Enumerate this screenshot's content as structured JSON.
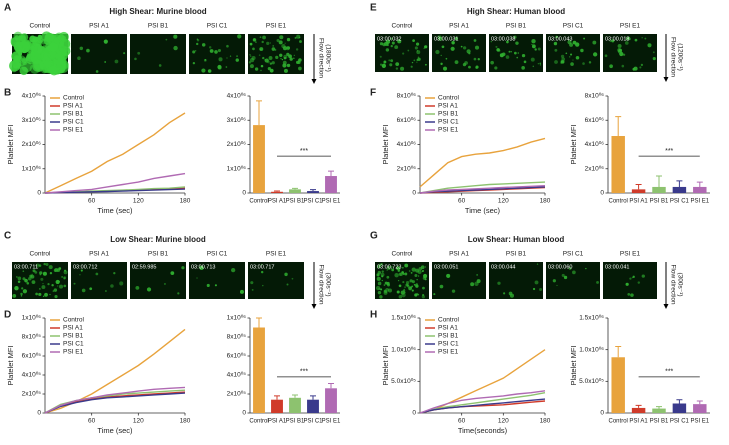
{
  "panels": [
    {
      "letter": "A",
      "title": "High Shear: Murine blood",
      "labels": [
        "Control",
        "PSI A1",
        "PSI B1",
        "PSI C1",
        "PSI E1"
      ],
      "flow": "Flow direction",
      "rate": "(1800s⁻¹)"
    },
    {
      "letter": "C",
      "title": "Low Shear: Murine blood",
      "labels": [
        "Control",
        "PSI A1",
        "PSI B1",
        "PSI C1",
        "PSI E1"
      ],
      "timestamps": [
        "03:00.711",
        "03:00.712",
        "02:59.985",
        "03:00.713",
        "03:00.717"
      ],
      "flow": "Flow direction",
      "rate": "(300s⁻¹)"
    },
    {
      "letter": "E",
      "title": "High Shear: Human blood",
      "labels": [
        "Control",
        "PSI A1",
        "PSI B1",
        "PSI C1",
        "PSI E1"
      ],
      "timestamps": [
        "03:00.032",
        "03:00.031",
        "03:00.038",
        "03:00.043",
        "03:00.018"
      ],
      "flow": "Flow direction",
      "rate": "(1200s⁻¹)"
    },
    {
      "letter": "G",
      "title": "Low Shear: Human blood",
      "labels": [
        "Control",
        "PSI A1",
        "PSI B1",
        "PSI C1",
        "PSI E1"
      ],
      "timestamps": [
        "03:00.723",
        "03:00.051",
        "03:00.044",
        "03:00.060",
        "03:00.041"
      ],
      "flow": "Flow direction",
      "rate": "(300s⁻¹)"
    }
  ],
  "plot_letters": [
    "B",
    "D",
    "F",
    "H"
  ],
  "chart_data": [
    {
      "type": "line",
      "xlabel": "Time (sec)",
      "ylabel": "Platelet MFI",
      "x": [
        0,
        20,
        40,
        60,
        80,
        100,
        120,
        140,
        160,
        180
      ],
      "xlim": [
        0,
        180
      ],
      "xticks": [
        60,
        120,
        180
      ],
      "ylim": [
        0,
        4000000
      ],
      "yticks": [
        0,
        {
          "value": 1000000,
          "label": "1x10⁰⁶"
        },
        {
          "value": 2000000,
          "label": "2x10⁰⁶"
        },
        {
          "value": 3000000,
          "label": "3x10⁰⁶"
        },
        {
          "value": 4000000,
          "label": "4x10⁰⁶"
        }
      ],
      "series": [
        {
          "name": "Control",
          "color": "#e8a33d",
          "values": [
            0,
            300000,
            600000,
            900000,
            1300000,
            1600000,
            2000000,
            2400000,
            2900000,
            3300000
          ]
        },
        {
          "name": "PSI A1",
          "color": "#d03b2a",
          "values": [
            0,
            20000,
            40000,
            60000,
            80000,
            100000,
            120000,
            140000,
            160000,
            200000
          ]
        },
        {
          "name": "PSI B1",
          "color": "#8dc26f",
          "values": [
            0,
            30000,
            50000,
            80000,
            100000,
            120000,
            150000,
            180000,
            200000,
            250000
          ]
        },
        {
          "name": "PSI C1",
          "color": "#3a3a8c",
          "values": [
            0,
            20000,
            30000,
            50000,
            60000,
            80000,
            100000,
            120000,
            140000,
            160000
          ]
        },
        {
          "name": "PSI E1",
          "color": "#b06ab3",
          "values": [
            0,
            50000,
            100000,
            150000,
            250000,
            350000,
            450000,
            600000,
            700000,
            800000
          ]
        }
      ]
    },
    {
      "type": "bar",
      "categories": [
        "Control",
        "PSI A1",
        "PSI B1",
        "PSI C1",
        "PSI E1"
      ],
      "values": [
        2800000,
        50000,
        150000,
        80000,
        700000
      ],
      "errors": [
        1000000,
        30000,
        40000,
        60000,
        200000
      ],
      "colors": [
        "#e8a33d",
        "#d03b2a",
        "#8dc26f",
        "#3a3a8c",
        "#b06ab3"
      ],
      "ylim": [
        0,
        4000000
      ],
      "yticks": [
        0,
        {
          "value": 1000000,
          "label": "1x10⁰⁶"
        },
        {
          "value": 2000000,
          "label": "2x10⁰⁶"
        },
        {
          "value": 3000000,
          "label": "3x10⁰⁶"
        },
        {
          "value": 4000000,
          "label": "4x10⁰⁶"
        }
      ],
      "annotation": "***"
    },
    {
      "type": "line",
      "xlabel": "Time (sec)",
      "ylabel": "Platelet MFI",
      "x": [
        0,
        20,
        40,
        60,
        80,
        100,
        120,
        140,
        160,
        180
      ],
      "xlim": [
        0,
        180
      ],
      "xticks": [
        60,
        120,
        180
      ],
      "ylim": [
        0,
        1000000
      ],
      "yticks": [
        0,
        {
          "value": 200000,
          "label": "2x10⁰⁵"
        },
        {
          "value": 400000,
          "label": "4x10⁰⁵"
        },
        {
          "value": 600000,
          "label": "6x10⁰⁵"
        },
        {
          "value": 800000,
          "label": "8x10⁰⁵"
        },
        {
          "value": 1000000,
          "label": "1x10⁰⁶"
        }
      ],
      "series": [
        {
          "name": "Control",
          "color": "#e8a33d",
          "values": [
            0,
            50000,
            120000,
            200000,
            300000,
            400000,
            500000,
            620000,
            750000,
            880000
          ]
        },
        {
          "name": "PSI A1",
          "color": "#d03b2a",
          "values": [
            0,
            80000,
            120000,
            150000,
            170000,
            180000,
            190000,
            200000,
            210000,
            220000
          ]
        },
        {
          "name": "PSI B1",
          "color": "#8dc26f",
          "values": [
            0,
            90000,
            130000,
            160000,
            180000,
            200000,
            210000,
            220000,
            230000,
            240000
          ]
        },
        {
          "name": "PSI C1",
          "color": "#3a3a8c",
          "values": [
            0,
            70000,
            110000,
            140000,
            160000,
            170000,
            180000,
            190000,
            200000,
            210000
          ]
        },
        {
          "name": "PSI E1",
          "color": "#b06ab3",
          "values": [
            0,
            80000,
            130000,
            160000,
            190000,
            210000,
            230000,
            250000,
            260000,
            270000
          ]
        }
      ]
    },
    {
      "type": "bar",
      "categories": [
        "Control",
        "PSI A1",
        "PSI B1",
        "PSI C1",
        "PSI E1"
      ],
      "values": [
        900000,
        140000,
        160000,
        140000,
        260000
      ],
      "errors": [
        100000,
        40000,
        30000,
        40000,
        50000
      ],
      "colors": [
        "#e8a33d",
        "#d03b2a",
        "#8dc26f",
        "#3a3a8c",
        "#b06ab3"
      ],
      "ylim": [
        0,
        1000000
      ],
      "yticks": [
        0,
        {
          "value": 200000,
          "label": "2x10⁰⁵"
        },
        {
          "value": 400000,
          "label": "4x10⁰⁵"
        },
        {
          "value": 600000,
          "label": "6x10⁰⁵"
        },
        {
          "value": 800000,
          "label": "8x10⁰⁵"
        },
        {
          "value": 1000000,
          "label": "1x10⁰⁶"
        }
      ],
      "annotation": "***"
    },
    {
      "type": "line",
      "xlabel": "Time (sec)",
      "ylabel": "Platelet MFI",
      "x": [
        0,
        20,
        40,
        60,
        80,
        100,
        120,
        140,
        160,
        180
      ],
      "xlim": [
        0,
        180
      ],
      "xticks": [
        60,
        120,
        180
      ],
      "ylim": [
        0,
        8000000
      ],
      "yticks": [
        0,
        {
          "value": 2000000,
          "label": "2x10⁰⁶"
        },
        {
          "value": 4000000,
          "label": "4x10⁰⁶"
        },
        {
          "value": 6000000,
          "label": "6x10⁰⁶"
        },
        {
          "value": 8000000,
          "label": "8x10⁰⁶"
        }
      ],
      "series": [
        {
          "name": "Control",
          "color": "#e8a33d",
          "values": [
            500000,
            1500000,
            2500000,
            3000000,
            3200000,
            3300000,
            3500000,
            3800000,
            4200000,
            4500000
          ]
        },
        {
          "name": "PSI A1",
          "color": "#d03b2a",
          "values": [
            0,
            50000,
            100000,
            150000,
            200000,
            250000,
            300000,
            350000,
            400000,
            450000
          ]
        },
        {
          "name": "PSI B1",
          "color": "#8dc26f",
          "values": [
            0,
            200000,
            400000,
            500000,
            600000,
            700000,
            750000,
            800000,
            850000,
            900000
          ]
        },
        {
          "name": "PSI C1",
          "color": "#3a3a8c",
          "values": [
            0,
            100000,
            150000,
            200000,
            250000,
            300000,
            350000,
            400000,
            450000,
            500000
          ]
        },
        {
          "name": "PSI E1",
          "color": "#b06ab3",
          "values": [
            0,
            150000,
            250000,
            300000,
            350000,
            400000,
            450000,
            500000,
            550000,
            600000
          ]
        }
      ]
    },
    {
      "type": "bar",
      "ylabel": "Platelet MFI",
      "categories": [
        "Control",
        "PSI A1",
        "PSI B1",
        "PSI C1",
        "PSI E1"
      ],
      "values": [
        4700000,
        300000,
        500000,
        500000,
        500000
      ],
      "errors": [
        1600000,
        400000,
        900000,
        500000,
        400000
      ],
      "colors": [
        "#e8a33d",
        "#d03b2a",
        "#8dc26f",
        "#3a3a8c",
        "#b06ab3"
      ],
      "ylim": [
        0,
        8000000
      ],
      "yticks": [
        0,
        {
          "value": 2000000,
          "label": "2x10⁰⁶"
        },
        {
          "value": 4000000,
          "label": "4x10⁰⁶"
        },
        {
          "value": 6000000,
          "label": "6x10⁰⁶"
        },
        {
          "value": 8000000,
          "label": "8x10⁰⁶"
        }
      ],
      "annotation": "***"
    },
    {
      "type": "line",
      "xlabel": "Time(seconds)",
      "ylabel": "Platelet MFI",
      "x": [
        0,
        20,
        40,
        60,
        80,
        100,
        120,
        140,
        160,
        180
      ],
      "xlim": [
        0,
        180
      ],
      "xticks": [
        60,
        120,
        180
      ],
      "ylim": [
        0,
        1500000
      ],
      "yticks": [
        0,
        {
          "value": 500000,
          "label": "5.0x10⁰⁵"
        },
        {
          "value": 1000000,
          "label": "1.0x10⁰⁶"
        },
        {
          "value": 1500000,
          "label": "1.5x10⁰⁶"
        }
      ],
      "series": [
        {
          "name": "Control",
          "color": "#e8a33d",
          "values": [
            0,
            50000,
            150000,
            250000,
            350000,
            450000,
            550000,
            700000,
            850000,
            1000000
          ]
        },
        {
          "name": "PSI A1",
          "color": "#d03b2a",
          "values": [
            0,
            50000,
            80000,
            100000,
            110000,
            120000,
            130000,
            150000,
            170000,
            190000
          ]
        },
        {
          "name": "PSI B1",
          "color": "#8dc26f",
          "values": [
            0,
            60000,
            100000,
            130000,
            160000,
            190000,
            220000,
            250000,
            280000,
            320000
          ]
        },
        {
          "name": "PSI C1",
          "color": "#3a3a8c",
          "values": [
            0,
            50000,
            80000,
            100000,
            120000,
            140000,
            160000,
            180000,
            200000,
            220000
          ]
        },
        {
          "name": "PSI E1",
          "color": "#b06ab3",
          "values": [
            0,
            80000,
            150000,
            200000,
            230000,
            250000,
            270000,
            300000,
            320000,
            350000
          ]
        }
      ]
    },
    {
      "type": "bar",
      "ylabel": "Platelet MFI",
      "categories": [
        "Control",
        "PSI A1",
        "PSI B1",
        "PSI C1",
        "PSI E1"
      ],
      "values": [
        880000,
        80000,
        70000,
        150000,
        140000
      ],
      "errors": [
        170000,
        40000,
        30000,
        60000,
        50000
      ],
      "colors": [
        "#e8a33d",
        "#d03b2a",
        "#8dc26f",
        "#3a3a8c",
        "#b06ab3"
      ],
      "ylim": [
        0,
        1500000
      ],
      "yticks": [
        0,
        {
          "value": 500000,
          "label": "5.0x10⁰⁵"
        },
        {
          "value": 1000000,
          "label": "1.0x10⁰⁶"
        },
        {
          "value": 1500000,
          "label": "1.5x10⁰⁶"
        }
      ],
      "annotation": "***"
    }
  ]
}
